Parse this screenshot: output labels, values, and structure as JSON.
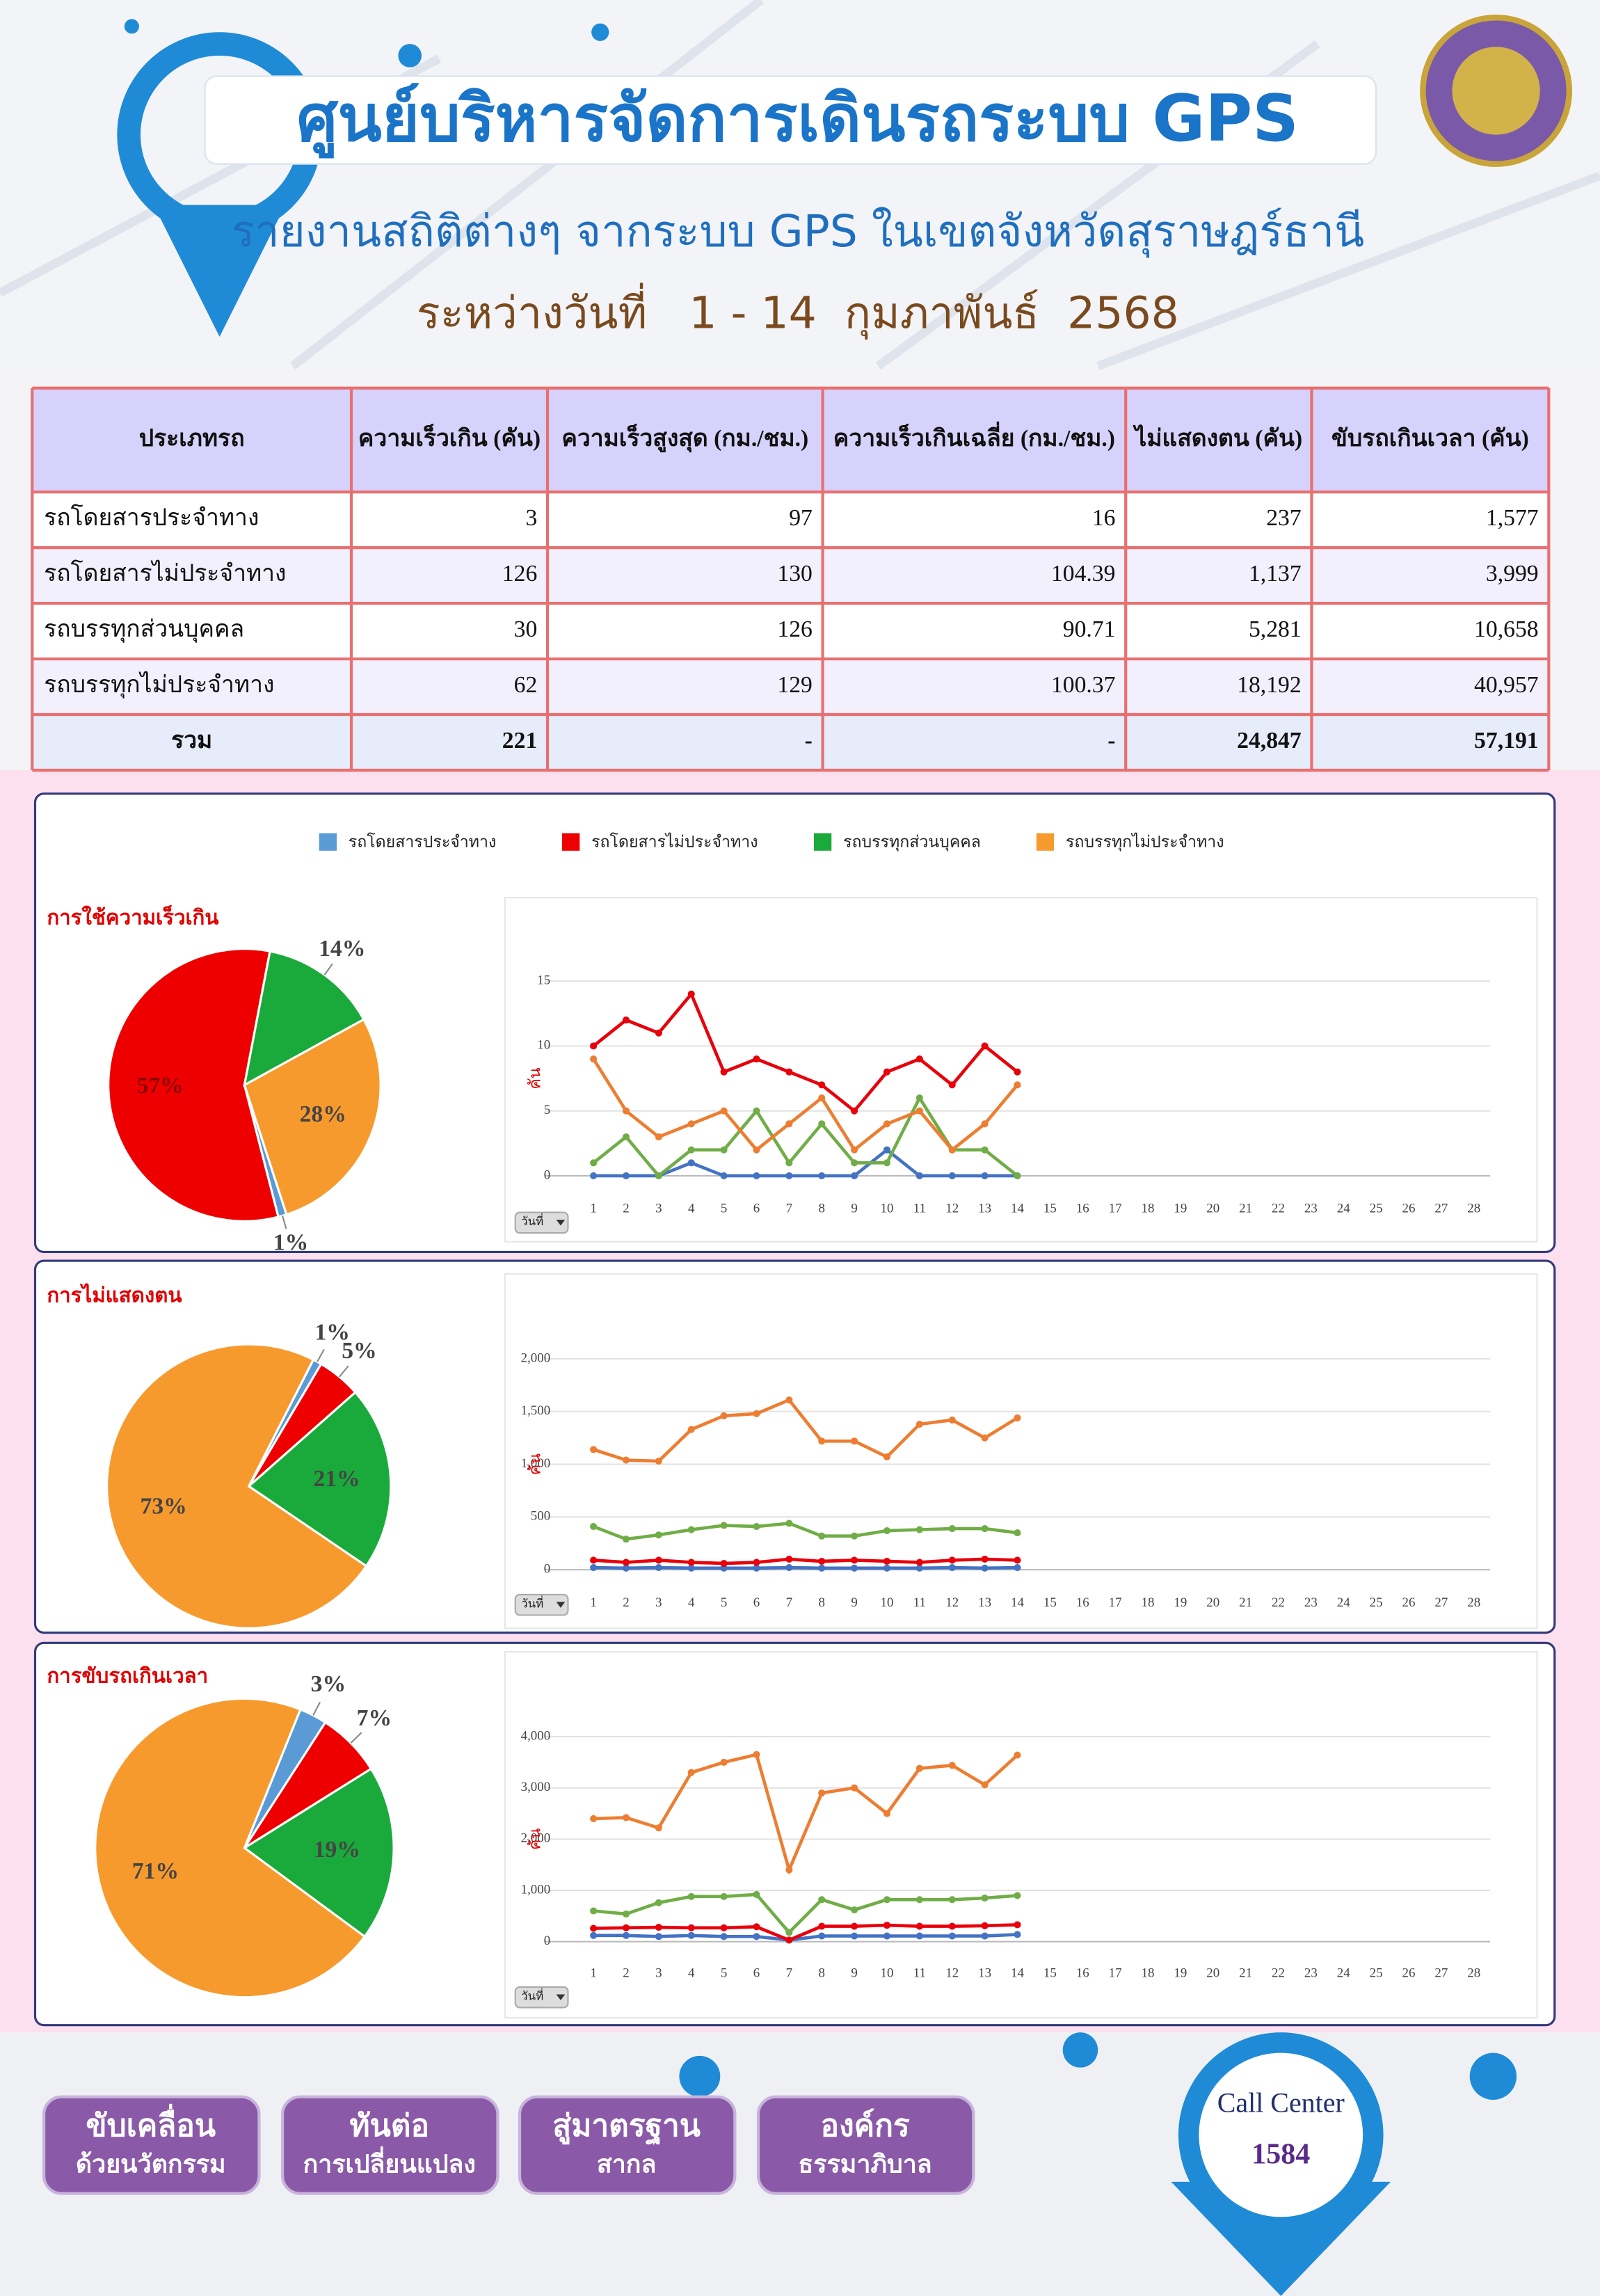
{
  "header": {
    "title": "ศูนย์บริหารจัดการเดินรถระบบ GPS",
    "subtitle": "รายงานสถิติต่างๆ จากระบบ GPS ในเขตจังหวัดสุราษฎร์ธานี",
    "date_range": "ระหว่างวันที่   1 - 14  กุมภาพันธ์  2568"
  },
  "table": {
    "headers": [
      "ประเภทรถ",
      "ความเร็วเกิน (คัน)",
      "ความเร็วสูงสุด (กม./ชม.)",
      "ความเร็วเกินเฉลี่ย (กม./ชม.)",
      "ไม่แสดงตน (คัน)",
      "ขับรถเกินเวลา (คัน)"
    ],
    "rows": [
      [
        "รถโดยสารประจำทาง",
        3,
        97,
        16,
        237,
        "1,577"
      ],
      [
        "รถโดยสารไม่ประจำทาง",
        126,
        130,
        104.39,
        "1,137",
        "3,999"
      ],
      [
        "รถบรรทุกส่วนบุคคล",
        30,
        126,
        90.71,
        "5,281",
        "10,658"
      ],
      [
        "รถบรรทุกไม่ประจำทาง",
        62,
        129,
        100.37,
        "18,192",
        "40,957"
      ],
      [
        "รวม",
        221,
        "-",
        "-",
        "24,847",
        "57,191"
      ]
    ]
  },
  "chart_data": [
    {
      "type": "pie",
      "title": "การใช้ความเร็วเกิน",
      "categories": [
        "รถโดยสารประจำทาง",
        "รถโดยสารไม่ประจำทาง",
        "รถบรรทุกส่วนบุคคล",
        "รถบรรทุกไม่ประจำทาง"
      ],
      "colors": [
        "#5b9bd5",
        "#ee0000",
        "#1aaa3c",
        "#f79a2e"
      ],
      "values": [
        1,
        57,
        14,
        28
      ],
      "value_labels": [
        "1%",
        "57%",
        "14%",
        "28%"
      ]
    },
    {
      "type": "line",
      "y_label": "คัน",
      "filter_label": "วันที่",
      "x": [
        1,
        2,
        3,
        4,
        5,
        6,
        7,
        8,
        9,
        10,
        11,
        12,
        13,
        14
      ],
      "xlim": [
        -0.5,
        28.5
      ],
      "xticks": [
        1,
        2,
        3,
        4,
        5,
        6,
        7,
        8,
        9,
        10,
        11,
        12,
        13,
        14,
        15,
        16,
        17,
        18,
        19,
        20,
        21,
        22,
        23,
        24,
        25,
        26,
        27,
        28
      ],
      "ylim": [
        0,
        15
      ],
      "yticks": [
        0,
        5,
        10,
        15
      ],
      "grid": true,
      "series": [
        {
          "color": "#4472c4",
          "values": [
            0,
            0,
            0,
            1,
            0,
            0,
            0,
            0,
            0,
            2,
            0,
            0,
            0,
            0
          ]
        },
        {
          "color": "#e8000b",
          "values": [
            10,
            12,
            11,
            14,
            8,
            9,
            8,
            7,
            5,
            8,
            9,
            7,
            10,
            8
          ]
        },
        {
          "color": "#70ad47",
          "values": [
            1,
            3,
            0,
            2,
            2,
            5,
            1,
            4,
            1,
            1,
            6,
            2,
            2,
            0
          ]
        },
        {
          "color": "#ed7d31",
          "values": [
            9,
            5,
            3,
            4,
            5,
            2,
            4,
            6,
            2,
            4,
            5,
            2,
            4,
            7
          ]
        }
      ]
    },
    {
      "type": "pie",
      "title": "การไม่แสดงตน",
      "colors": [
        "#5b9bd5",
        "#ee0000",
        "#1aaa3c",
        "#f79a2e"
      ],
      "values": [
        1,
        5,
        21,
        73
      ],
      "value_labels": [
        "1%",
        "5%",
        "21%",
        "73%"
      ]
    },
    {
      "type": "line",
      "y_label": "คัน",
      "filter_label": "วันที่",
      "x": [
        1,
        2,
        3,
        4,
        5,
        6,
        7,
        8,
        9,
        10,
        11,
        12,
        13,
        14
      ],
      "xlim": [
        -0.5,
        28.5
      ],
      "xticks": [
        1,
        2,
        3,
        4,
        5,
        6,
        7,
        8,
        9,
        10,
        11,
        12,
        13,
        14,
        15,
        16,
        17,
        18,
        19,
        20,
        21,
        22,
        23,
        24,
        25,
        26,
        27,
        28
      ],
      "ylim": [
        0,
        2000
      ],
      "yticks": [
        0,
        500,
        {
          "value": 1000,
          "label": "1,000"
        },
        {
          "value": 1500,
          "label": "1,500"
        },
        {
          "value": 2000,
          "label": "2,000"
        }
      ],
      "grid": true,
      "series": [
        {
          "color": "#4472c4",
          "values": [
            20,
            15,
            20,
            15,
            15,
            15,
            20,
            15,
            15,
            15,
            15,
            20,
            15,
            20
          ]
        },
        {
          "color": "#e8000b",
          "values": [
            90,
            70,
            90,
            70,
            60,
            70,
            100,
            80,
            90,
            80,
            70,
            90,
            100,
            90
          ]
        },
        {
          "color": "#70ad47",
          "values": [
            410,
            290,
            330,
            380,
            420,
            410,
            440,
            320,
            320,
            370,
            380,
            390,
            390,
            350
          ]
        },
        {
          "color": "#ed7d31",
          "values": [
            1140,
            1040,
            1030,
            1330,
            1460,
            1480,
            1610,
            1220,
            1220,
            1070,
            1380,
            1420,
            1250,
            1440
          ]
        }
      ]
    },
    {
      "type": "pie",
      "title": "การขับรถเกินเวลา",
      "colors": [
        "#5b9bd5",
        "#ee0000",
        "#1aaa3c",
        "#f79a2e"
      ],
      "values": [
        3,
        7,
        19,
        71
      ],
      "value_labels": [
        "3%",
        "7%",
        "19%",
        "71%"
      ]
    },
    {
      "type": "line",
      "y_label": "คัน",
      "filter_label": "วันที่",
      "x": [
        1,
        2,
        3,
        4,
        5,
        6,
        7,
        8,
        9,
        10,
        11,
        12,
        13,
        14
      ],
      "xlim": [
        -0.5,
        28.5
      ],
      "xticks": [
        1,
        2,
        3,
        4,
        5,
        6,
        7,
        8,
        9,
        10,
        11,
        12,
        13,
        14,
        15,
        16,
        17,
        18,
        19,
        20,
        21,
        22,
        23,
        24,
        25,
        26,
        27,
        28
      ],
      "ylim": [
        0,
        4000
      ],
      "yticks": [
        0,
        {
          "value": 1000,
          "label": "1,000"
        },
        {
          "value": 2000,
          "label": "2,000"
        },
        {
          "value": 3000,
          "label": "3,000"
        },
        {
          "value": 4000,
          "label": "4,000"
        }
      ],
      "grid": true,
      "series": [
        {
          "color": "#4472c4",
          "values": [
            120,
            120,
            100,
            120,
            100,
            100,
            30,
            110,
            110,
            110,
            110,
            110,
            110,
            140
          ]
        },
        {
          "color": "#e8000b",
          "values": [
            260,
            270,
            280,
            270,
            270,
            290,
            30,
            300,
            300,
            320,
            300,
            300,
            310,
            330
          ]
        },
        {
          "color": "#70ad47",
          "values": [
            600,
            540,
            760,
            880,
            880,
            920,
            180,
            820,
            620,
            820,
            820,
            820,
            850,
            900
          ]
        },
        {
          "color": "#ed7d31",
          "values": [
            2400,
            2420,
            2220,
            3300,
            3500,
            3650,
            1400,
            2900,
            3000,
            2500,
            3380,
            3440,
            3060,
            3640
          ]
        }
      ]
    }
  ],
  "footer": {
    "slogans": [
      [
        "ขับเคลื่อน",
        "ด้วยนวัตกรรม"
      ],
      [
        "ทันต่อ",
        "การเปลี่ยนแปลง"
      ],
      [
        "สู่มาตรฐาน",
        "สากล"
      ],
      [
        "องค์กร",
        "ธรรมาภิบาล"
      ]
    ],
    "call_center": {
      "label": "Call Center",
      "number": "1584"
    }
  }
}
